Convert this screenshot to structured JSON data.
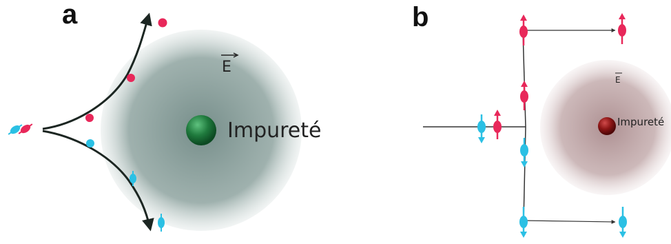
{
  "panel_a": {
    "letter": "a",
    "field_label": "E",
    "impurity_label": "Impureté"
  },
  "panel_b": {
    "letter": "b",
    "field_label": "E",
    "impurity_label": "Impureté"
  },
  "colors": {
    "spin_up": "#e8285a",
    "spin_down": "#2bc0e4",
    "cloud_a": "#7f9692",
    "cloud_b": "#b99a9c",
    "impurity_a": "#1f7a3d",
    "impurity_b": "#8b1515",
    "trajectory": "#1c2622"
  }
}
